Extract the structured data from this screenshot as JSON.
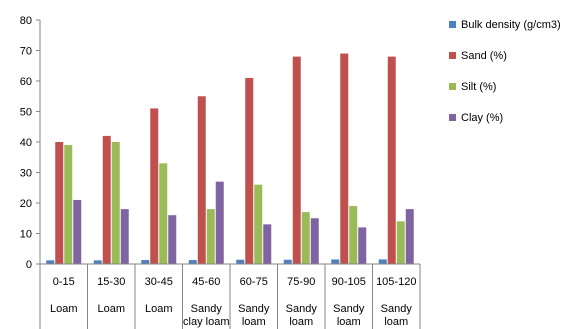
{
  "chart_data": {
    "type": "bar",
    "title": "",
    "xlabel": "",
    "ylabel": "",
    "ylim": [
      0,
      80
    ],
    "yticks": [
      0,
      10,
      20,
      30,
      40,
      50,
      60,
      70,
      80
    ],
    "grid": false,
    "legend_position": "right",
    "categories": [
      {
        "depth": "0-15",
        "texture": [
          "Loam"
        ]
      },
      {
        "depth": "15-30",
        "texture": [
          "Loam"
        ]
      },
      {
        "depth": "30-45",
        "texture": [
          "Loam"
        ]
      },
      {
        "depth": "45-60",
        "texture": [
          "Sandy",
          "clay loam"
        ]
      },
      {
        "depth": "60-75",
        "texture": [
          "Sandy",
          "loam"
        ]
      },
      {
        "depth": "75-90",
        "texture": [
          "Sandy",
          "loam"
        ]
      },
      {
        "depth": "90-105",
        "texture": [
          "Sandy",
          "loam"
        ]
      },
      {
        "depth": "105-120",
        "texture": [
          "Sandy",
          "loam"
        ]
      }
    ],
    "series": [
      {
        "name": "Bulk density (g/cm3)",
        "color": "#4f81bd",
        "values": [
          1.2,
          1.2,
          1.3,
          1.3,
          1.4,
          1.4,
          1.5,
          1.5
        ]
      },
      {
        "name": "Sand (%)",
        "color": "#c0504d",
        "values": [
          40,
          42,
          51,
          55,
          61,
          68,
          69,
          68
        ]
      },
      {
        "name": "Silt (%)",
        "color": "#9bbb59",
        "values": [
          39,
          40,
          33,
          18,
          26,
          17,
          19,
          14
        ]
      },
      {
        "name": "Clay (%)",
        "color": "#8064a2",
        "values": [
          21,
          18,
          16,
          27,
          13,
          15,
          12,
          18
        ]
      }
    ]
  }
}
